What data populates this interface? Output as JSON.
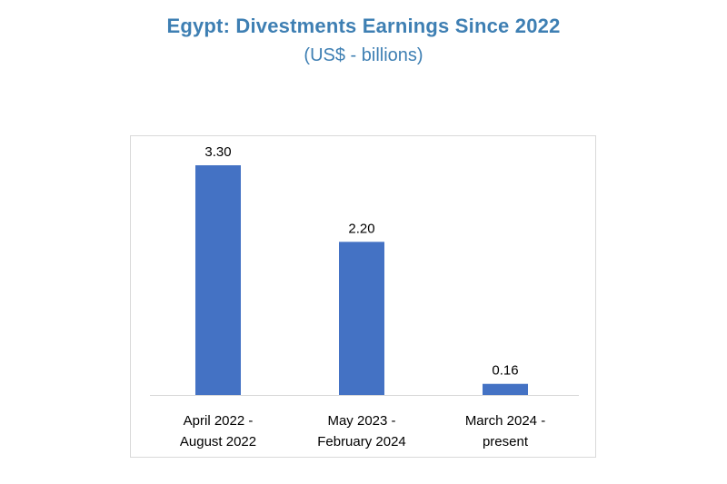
{
  "chart_data": {
    "type": "bar",
    "title": "Egypt: Divestments Earnings Since 2022",
    "subtitle": "(US$ - billions)",
    "categories": [
      [
        "April 2022 -",
        "August 2022"
      ],
      [
        "May 2023 -",
        "February 2024"
      ],
      [
        "March 2024 -",
        "present"
      ]
    ],
    "values": [
      3.3,
      2.2,
      0.16
    ],
    "data_labels": [
      "3.30",
      "2.20",
      "0.16"
    ],
    "ylim": [
      0,
      3.3
    ],
    "grid": false,
    "legend": "none",
    "bar_color": "#4472c4",
    "title_color": "#3e7fb3"
  }
}
